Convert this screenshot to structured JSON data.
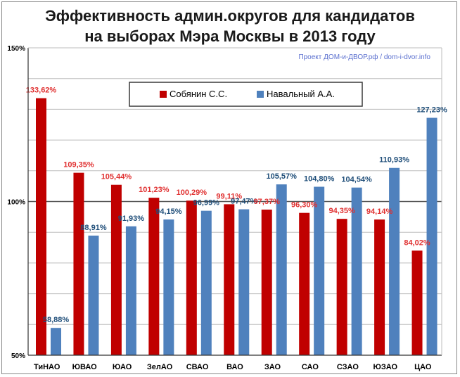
{
  "chart_data": {
    "type": "bar",
    "title_lines": [
      "Эффективность админ.округов для кандидатов",
      "на выборах Мэра Москвы в 2013 году"
    ],
    "credit": "Проект ДОМ-и-ДВОР.рф / dom-i-dvor.info",
    "categories": [
      "ТиНАО",
      "ЮВАО",
      "ЮАО",
      "ЗелАО",
      "СВАО",
      "ВАО",
      "ЗАО",
      "САО",
      "СЗАО",
      "ЮЗАО",
      "ЦАО"
    ],
    "series": [
      {
        "name": "Собянин С.С.",
        "color": "#c00000",
        "label_color": "#e03030",
        "values": [
          133.62,
          109.35,
          105.44,
          101.23,
          100.29,
          99.11,
          97.37,
          96.3,
          94.35,
          94.14,
          84.02
        ],
        "labels": [
          "133,62%",
          "109,35%",
          "105,44%",
          "101,23%",
          "100,29%",
          "99,11%",
          "97,37%",
          "96,30%",
          "94,35%",
          "94,14%",
          "84,02%"
        ]
      },
      {
        "name": "Навальный А.А.",
        "color": "#4f81bd",
        "label_color": "#1f4e79",
        "values": [
          58.88,
          88.91,
          91.93,
          94.15,
          96.99,
          97.47,
          105.57,
          104.8,
          104.54,
          110.93,
          127.23
        ],
        "labels": [
          "58,88%",
          "88,91%",
          "91,93%",
          "94,15%",
          "96,99%",
          "97,47%",
          "105,57%",
          "104,80%",
          "104,54%",
          "110,93%",
          "127,23%"
        ]
      }
    ],
    "yticks": [
      {
        "value": 50,
        "label": "50%"
      },
      {
        "value": 100,
        "label": "100%"
      },
      {
        "value": 150,
        "label": "150%"
      }
    ],
    "ylim": [
      50,
      150
    ],
    "gridline_values": [
      60,
      70,
      80,
      90,
      100,
      110,
      120,
      130,
      140
    ],
    "grid": true,
    "legend_position": "top-center"
  }
}
